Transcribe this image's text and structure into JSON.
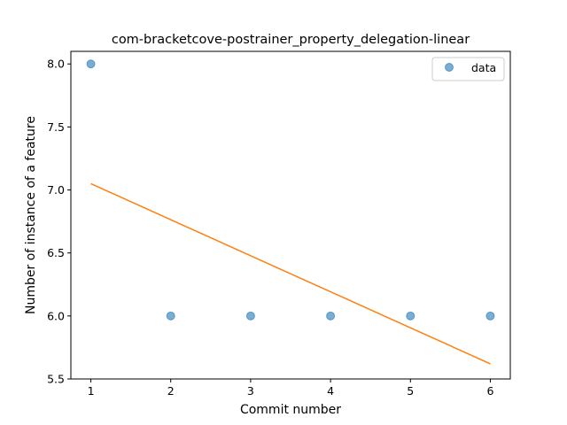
{
  "chart_data": {
    "type": "scatter",
    "title": "com-bracketcove-postrainer_property_delegation-linear",
    "xlabel": "Commit number",
    "ylabel": "Number of instance of a feature",
    "xlim": [
      0.75,
      6.25
    ],
    "ylim": [
      5.5,
      8.1
    ],
    "xticks": [
      1,
      2,
      3,
      4,
      5,
      6
    ],
    "yticks": [
      5.5,
      6.0,
      6.5,
      7.0,
      7.5,
      8.0
    ],
    "xtick_labels": [
      "1",
      "2",
      "3",
      "4",
      "5",
      "6"
    ],
    "ytick_labels": [
      "5.5",
      "6.0",
      "6.5",
      "7.0",
      "7.5",
      "8.0"
    ],
    "grid": false,
    "legend_position": "top-right",
    "series": [
      {
        "name": "data",
        "kind": "scatter",
        "color": "#1f77b4",
        "x": [
          1,
          2,
          3,
          4,
          5,
          6
        ],
        "y": [
          8.0,
          6.0,
          6.0,
          6.0,
          6.0,
          6.0
        ]
      },
      {
        "kind": "line",
        "color": "#ff7f0e",
        "x": [
          1,
          6
        ],
        "y": [
          7.05,
          5.62
        ]
      }
    ]
  }
}
